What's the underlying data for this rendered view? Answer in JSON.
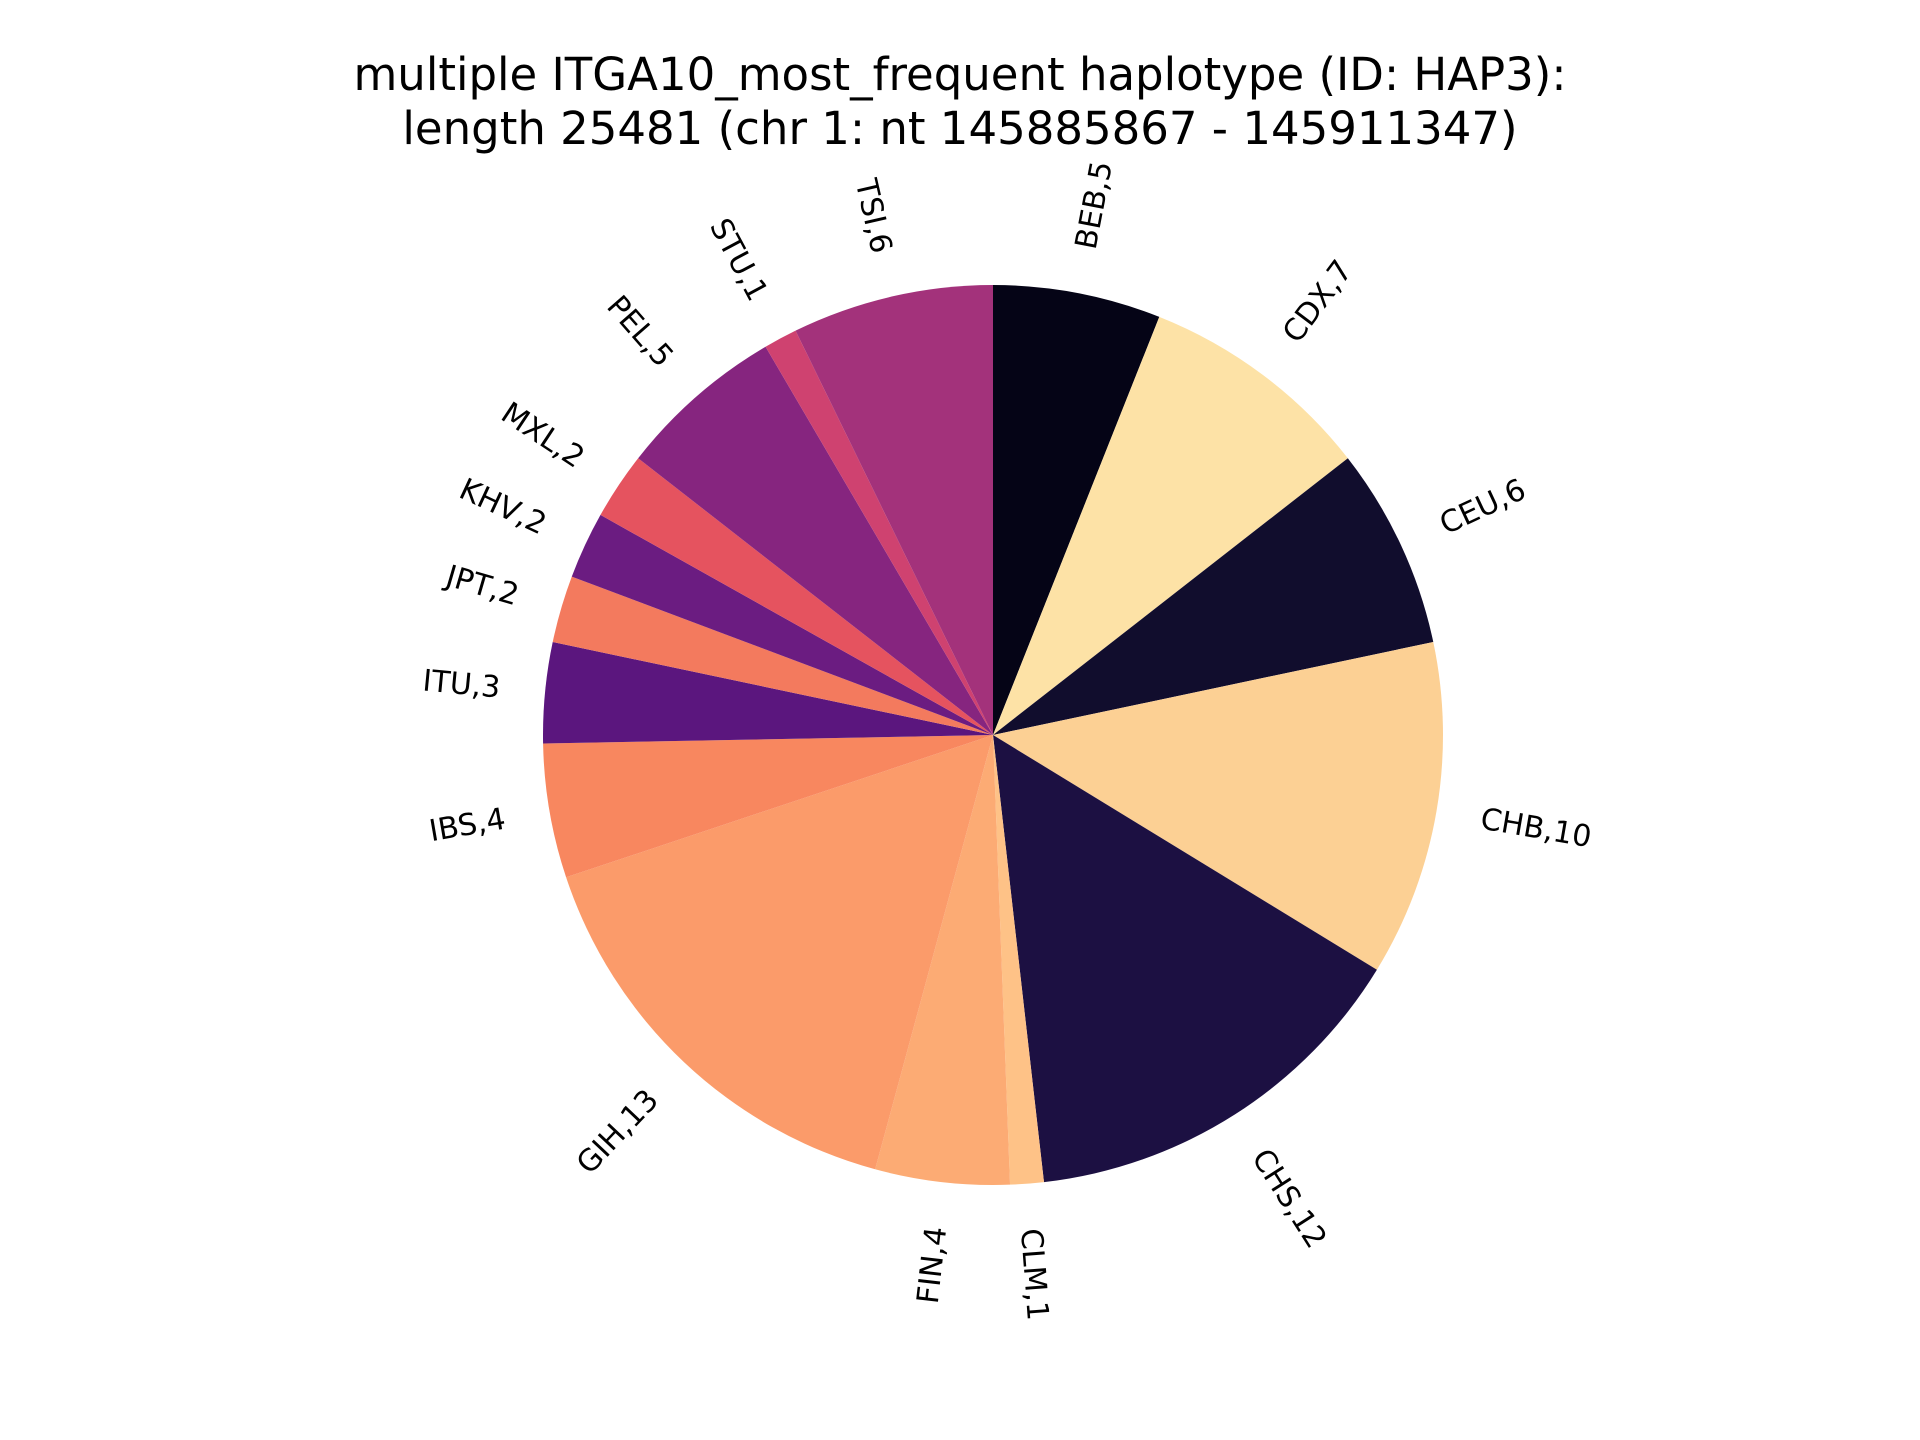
{
  "chart_data": {
    "type": "pie",
    "title": "multiple ITGA10_most_frequent haplotype (ID: HAP3):",
    "subtitle": "length 25481 (chr 1: nt 145885867 - 145911347)",
    "start_angle_deg": 90,
    "direction": "clockwise",
    "slices": [
      {
        "label": "BEB,5",
        "category": "BEB",
        "value": 5,
        "color": "#050416"
      },
      {
        "label": "CDX,7",
        "category": "CDX",
        "value": 7,
        "color": "#fde2a6"
      },
      {
        "label": "CEU,6",
        "category": "CEU",
        "value": 6,
        "color": "#110d2d"
      },
      {
        "label": "CHB,10",
        "category": "CHB",
        "value": 10,
        "color": "#fcd094"
      },
      {
        "label": "CHS,12",
        "category": "CHS",
        "value": 12,
        "color": "#1c1042"
      },
      {
        "label": "CLM,1",
        "category": "CLM",
        "value": 1,
        "color": "#fec287"
      },
      {
        "label": "FIN,4",
        "category": "FIN",
        "value": 4,
        "color": "#fcab74"
      },
      {
        "label": "GIH,13",
        "category": "GIH",
        "value": 13,
        "color": "#fb9b6a"
      },
      {
        "label": "IBS,4",
        "category": "IBS",
        "value": 4,
        "color": "#f8875f"
      },
      {
        "label": "ITU,3",
        "category": "ITU",
        "value": 3,
        "color": "#5b167e"
      },
      {
        "label": "JPT,2",
        "category": "JPT",
        "value": 2,
        "color": "#f37a5e"
      },
      {
        "label": "KHV,2",
        "category": "KHV",
        "value": 2,
        "color": "#6b1c81"
      },
      {
        "label": "MXL,2",
        "category": "MXL",
        "value": 2,
        "color": "#e5535f"
      },
      {
        "label": "PEL,5",
        "category": "PEL",
        "value": 5,
        "color": "#86257f"
      },
      {
        "label": "STU,1",
        "category": "STU",
        "value": 1,
        "color": "#cf4270"
      },
      {
        "label": "TSI,6",
        "category": "TSI",
        "value": 6,
        "color": "#a3327b"
      }
    ]
  }
}
